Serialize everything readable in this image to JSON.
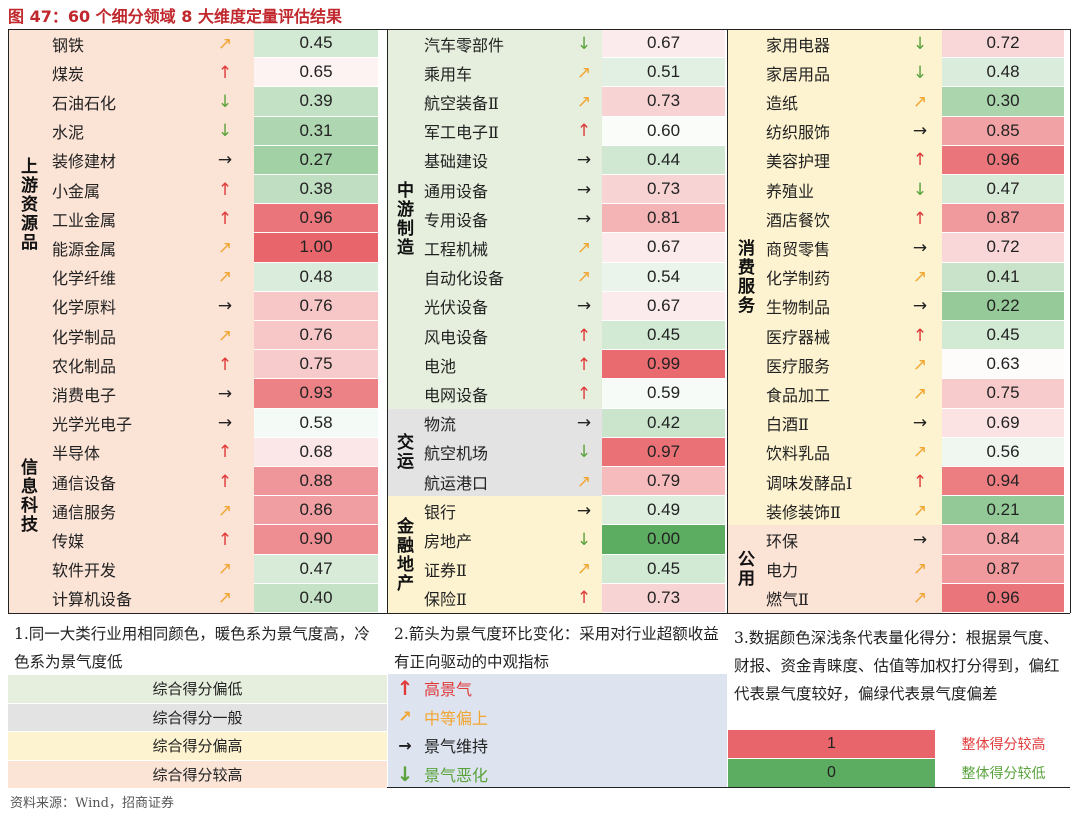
{
  "title": "图 47：60 个细分领域 8 大维度定量评估结果",
  "source": "资料来源：Wind，招商证券",
  "colors": {
    "warm": "#fbe3d6",
    "cool": "#e6efdd",
    "grey": "#e3e3e3",
    "yellow": "#fdf3d0",
    "legend_bg": "#dde4f0",
    "up": "#e03a3a",
    "mid": "#f2a531",
    "flat": "#222222",
    "down": "#5aa33c",
    "score_high": "#e8666b",
    "score_low": "#5cad61"
  },
  "chart_data": {
    "type": "table",
    "title": "60 个细分领域 8 大维度定量评估结果",
    "columns": [
      "大类",
      "行业",
      "景气度环比变化",
      "量化得分"
    ],
    "groups": [
      {
        "label": "上游资源品",
        "tone": "warm",
        "rows": [
          {
            "name": "钢铁",
            "trend": "mid",
            "score": "0.45"
          },
          {
            "name": "煤炭",
            "trend": "up",
            "score": "0.65"
          },
          {
            "name": "石油石化",
            "trend": "down",
            "score": "0.39"
          },
          {
            "name": "水泥",
            "trend": "down",
            "score": "0.31"
          },
          {
            "name": "装修建材",
            "trend": "flat",
            "score": "0.27"
          },
          {
            "name": "小金属",
            "trend": "up",
            "score": "0.38"
          },
          {
            "name": "工业金属",
            "trend": "up",
            "score": "0.96"
          },
          {
            "name": "能源金属",
            "trend": "mid",
            "score": "1.00"
          },
          {
            "name": "化学纤维",
            "trend": "mid",
            "score": "0.48"
          },
          {
            "name": "化学原料",
            "trend": "flat",
            "score": "0.76"
          },
          {
            "name": "化学制品",
            "trend": "mid",
            "score": "0.76"
          },
          {
            "name": "农化制品",
            "trend": "up",
            "score": "0.75"
          }
        ]
      },
      {
        "label": "信息科技",
        "tone": "warm",
        "rows": [
          {
            "name": "消费电子",
            "trend": "flat",
            "score": "0.93"
          },
          {
            "name": "光学光电子",
            "trend": "flat",
            "score": "0.58"
          },
          {
            "name": "半导体",
            "trend": "up",
            "score": "0.68"
          },
          {
            "name": "通信设备",
            "trend": "up",
            "score": "0.88"
          },
          {
            "name": "通信服务",
            "trend": "mid",
            "score": "0.86"
          },
          {
            "name": "传媒",
            "trend": "up",
            "score": "0.90"
          },
          {
            "name": "软件开发",
            "trend": "mid",
            "score": "0.47"
          },
          {
            "name": "计算机设备",
            "trend": "mid",
            "score": "0.40"
          }
        ]
      },
      {
        "label": "中游制造",
        "tone": "cool",
        "rows": [
          {
            "name": "汽车零部件",
            "trend": "down",
            "score": "0.67"
          },
          {
            "name": "乘用车",
            "trend": "mid",
            "score": "0.51"
          },
          {
            "name": "航空装备Ⅱ",
            "trend": "mid",
            "score": "0.73"
          },
          {
            "name": "军工电子Ⅱ",
            "trend": "up",
            "score": "0.60"
          },
          {
            "name": "基础建设",
            "trend": "flat",
            "score": "0.44"
          },
          {
            "name": "通用设备",
            "trend": "flat",
            "score": "0.73"
          },
          {
            "name": "专用设备",
            "trend": "flat",
            "score": "0.81"
          },
          {
            "name": "工程机械",
            "trend": "mid",
            "score": "0.67"
          },
          {
            "name": "自动化设备",
            "trend": "mid",
            "score": "0.54"
          },
          {
            "name": "光伏设备",
            "trend": "flat",
            "score": "0.67"
          },
          {
            "name": "风电设备",
            "trend": "up",
            "score": "0.45"
          },
          {
            "name": "电池",
            "trend": "up",
            "score": "0.99"
          },
          {
            "name": "电网设备",
            "trend": "up",
            "score": "0.59"
          }
        ]
      },
      {
        "label": "交运",
        "tone": "grey",
        "rows": [
          {
            "name": "物流",
            "trend": "flat",
            "score": "0.42"
          },
          {
            "name": "航空机场",
            "trend": "down",
            "score": "0.97"
          },
          {
            "name": "航运港口",
            "trend": "mid",
            "score": "0.79"
          }
        ]
      },
      {
        "label": "金融地产",
        "tone": "yellow",
        "rows": [
          {
            "name": "银行",
            "trend": "flat",
            "score": "0.49"
          },
          {
            "name": "房地产",
            "trend": "down",
            "score": "0.00"
          },
          {
            "name": "证券Ⅱ",
            "trend": "mid",
            "score": "0.45"
          },
          {
            "name": "保险Ⅱ",
            "trend": "up",
            "score": "0.73"
          }
        ]
      },
      {
        "label": "消费服务",
        "tone": "yellow",
        "rows": [
          {
            "name": "家用电器",
            "trend": "down",
            "score": "0.72"
          },
          {
            "name": "家居用品",
            "trend": "down",
            "score": "0.48"
          },
          {
            "name": "造纸",
            "trend": "mid",
            "score": "0.30"
          },
          {
            "name": "纺织服饰",
            "trend": "flat",
            "score": "0.85"
          },
          {
            "name": "美容护理",
            "trend": "up",
            "score": "0.96"
          },
          {
            "name": "养殖业",
            "trend": "down",
            "score": "0.47"
          },
          {
            "name": "酒店餐饮",
            "trend": "up",
            "score": "0.87"
          },
          {
            "name": "商贸零售",
            "trend": "flat",
            "score": "0.72"
          },
          {
            "name": "化学制药",
            "trend": "mid",
            "score": "0.41"
          },
          {
            "name": "生物制品",
            "trend": "flat",
            "score": "0.22"
          },
          {
            "name": "医疗器械",
            "trend": "up",
            "score": "0.45"
          },
          {
            "name": "医疗服务",
            "trend": "mid",
            "score": "0.63"
          },
          {
            "name": "食品加工",
            "trend": "mid",
            "score": "0.75"
          },
          {
            "name": "白酒Ⅱ",
            "trend": "flat",
            "score": "0.69"
          },
          {
            "name": "饮料乳品",
            "trend": "mid",
            "score": "0.56"
          },
          {
            "name": "调味发酵品Ⅰ",
            "trend": "up",
            "score": "0.94"
          },
          {
            "name": "装修装饰Ⅱ",
            "trend": "mid",
            "score": "0.21"
          }
        ]
      },
      {
        "label": "公用",
        "tone": "warm",
        "rows": [
          {
            "name": "环保",
            "trend": "flat",
            "score": "0.84"
          },
          {
            "name": "电力",
            "trend": "mid",
            "score": "0.87"
          },
          {
            "name": "燃气Ⅱ",
            "trend": "mid",
            "score": "0.96"
          }
        ]
      }
    ]
  },
  "notes": {
    "note1": "1.同一大类行业用相同颜色，暖色系为景气度高，冷色系为景气度低",
    "note2": "2.箭头为景气度环比变化：采用对行业超额收益有正向驱动的中观指标",
    "note3": "3.数据颜色深浅条代表量化得分：根据景气度、财报、资金青睐度、估值等加权打分得到，偏红代表景气度较好，偏绿代表景气度偏差"
  },
  "legend_group": [
    {
      "label": "综合得分偏低",
      "tone": "cool"
    },
    {
      "label": "综合得分一般",
      "tone": "grey"
    },
    {
      "label": "综合得分偏高",
      "tone": "yellow"
    },
    {
      "label": "综合得分较高",
      "tone": "warm"
    }
  ],
  "legend_arrows": [
    {
      "label": "高景气",
      "trend": "up"
    },
    {
      "label": "中等偏上",
      "trend": "mid"
    },
    {
      "label": "景气维持",
      "trend": "flat"
    },
    {
      "label": "景气恶化",
      "trend": "down"
    }
  ],
  "legend_scores": [
    {
      "value": "1",
      "label": "整体得分较高",
      "tone": "high"
    },
    {
      "value": "0",
      "label": "整体得分较低",
      "tone": "low"
    }
  ]
}
